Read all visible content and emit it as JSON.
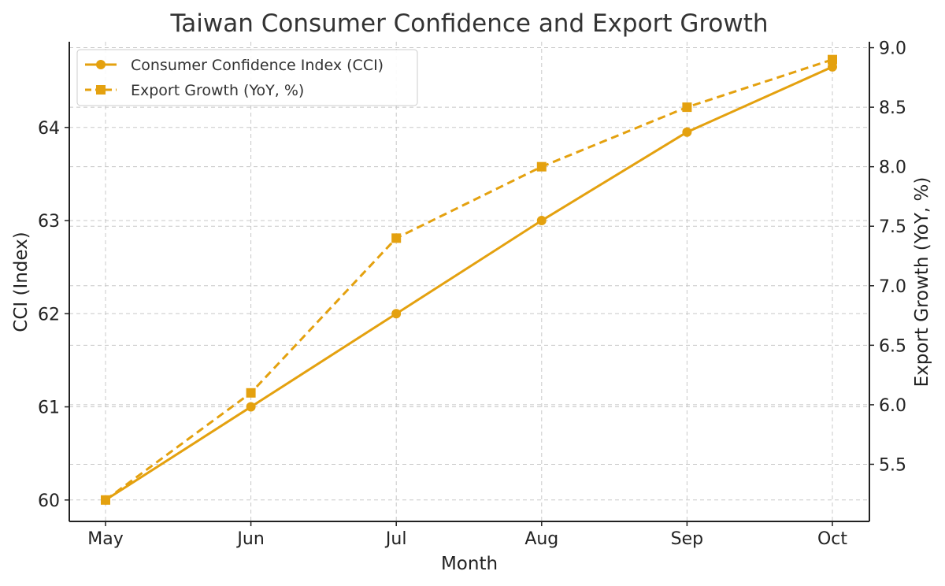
{
  "colors": {
    "series": "#E4A10F",
    "grid": "#c8c8c8",
    "axis": "#222222",
    "title": "#333333"
  },
  "chart_data": {
    "type": "line",
    "title": "Taiwan Consumer Confidence and Export Growth",
    "xlabel": "Month",
    "ylabel": "CCI (Index)",
    "y2label": "Export Growth (YoY, %)",
    "categories": [
      "May",
      "Jun",
      "Jul",
      "Aug",
      "Sep",
      "Oct"
    ],
    "ylim": [
      59.77,
      64.92
    ],
    "y2lim": [
      5.02,
      9.05
    ],
    "yticks": [
      "60",
      "61",
      "62",
      "63",
      "64"
    ],
    "y2ticks": [
      "5.5",
      "6.0",
      "6.5",
      "7.0",
      "7.5",
      "8.0",
      "8.5",
      "9.0"
    ],
    "grid": true,
    "legend_position": "top-left",
    "series": [
      {
        "name": "Consumer Confidence Index (CCI)",
        "axis": "left",
        "style": "solid",
        "marker": "circle",
        "values": [
          60.0,
          61.0,
          62.0,
          63.0,
          63.95,
          64.65
        ]
      },
      {
        "name": "Export Growth (YoY, %)",
        "axis": "right",
        "style": "dashed",
        "marker": "square",
        "values": [
          5.2,
          6.1,
          7.4,
          8.0,
          8.5,
          8.9
        ]
      }
    ]
  }
}
